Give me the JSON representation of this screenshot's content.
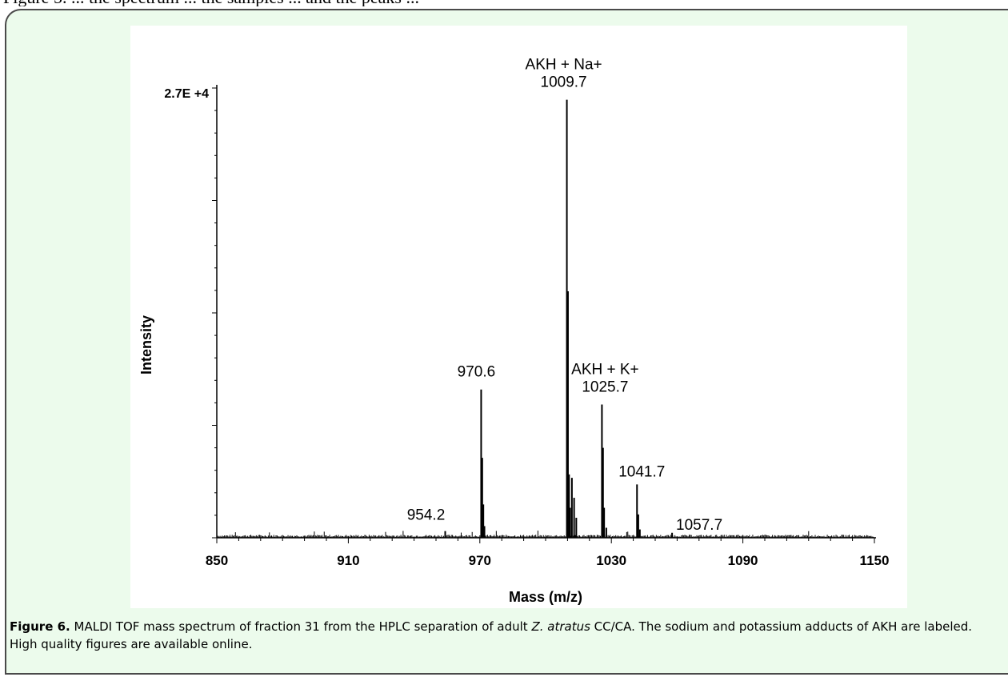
{
  "page_top_text": "Figure 5. ... the spectrum ... the samples ... and the peaks ...",
  "caption": {
    "label": "Figure 6.",
    "text_1": " MALDI TOF mass spectrum of fraction 31 from the HPLC separation of adult ",
    "species": "Z. atratus",
    "text_2": " CC/CA. The sodium and potassium adducts of AKH are labeled. High quality figures are available online."
  },
  "chart_data": {
    "type": "line",
    "title": "",
    "xlabel": "Mass (m/z)",
    "ylabel": "Intensity",
    "xlim": [
      850,
      1150
    ],
    "ylim": [
      0,
      27000
    ],
    "x_ticks": [
      "850",
      "910",
      "970",
      "1030",
      "1090",
      "1150"
    ],
    "y_max_label": "2.7E +4",
    "series": [
      {
        "peaks": [
          {
            "mz": 954.2,
            "intensity": 400
          },
          {
            "mz": 970.6,
            "intensity": 8900
          },
          {
            "mz": 971.1,
            "intensity": 4800
          },
          {
            "mz": 971.6,
            "intensity": 2000
          },
          {
            "mz": 972.1,
            "intensity": 700
          },
          {
            "mz": 1009.7,
            "intensity": 26300
          },
          {
            "mz": 1010.2,
            "intensity": 14800
          },
          {
            "mz": 1010.7,
            "intensity": 3800
          },
          {
            "mz": 1011.2,
            "intensity": 1800
          },
          {
            "mz": 1012.0,
            "intensity": 3600
          },
          {
            "mz": 1013.0,
            "intensity": 2400
          },
          {
            "mz": 1014.0,
            "intensity": 1200
          },
          {
            "mz": 1025.7,
            "intensity": 8000
          },
          {
            "mz": 1026.2,
            "intensity": 5400
          },
          {
            "mz": 1026.7,
            "intensity": 1800
          },
          {
            "mz": 1027.7,
            "intensity": 600
          },
          {
            "mz": 1041.7,
            "intensity": 3200
          },
          {
            "mz": 1042.3,
            "intensity": 1400
          },
          {
            "mz": 1043.0,
            "intensity": 500
          },
          {
            "mz": 1057.7,
            "intensity": 300
          }
        ]
      }
    ],
    "annotations": [
      {
        "mz": 954.2,
        "lines": [
          "954.2"
        ]
      },
      {
        "mz": 970.6,
        "lines": [
          "970.6"
        ]
      },
      {
        "mz": 1009.7,
        "lines": [
          "AKH + Na+",
          "1009.7"
        ]
      },
      {
        "mz": 1025.7,
        "lines": [
          "AKH + K+",
          "1025.7"
        ]
      },
      {
        "mz": 1041.7,
        "lines": [
          "1041.7"
        ]
      },
      {
        "mz": 1057.7,
        "lines": [
          "1057.7"
        ]
      }
    ]
  }
}
